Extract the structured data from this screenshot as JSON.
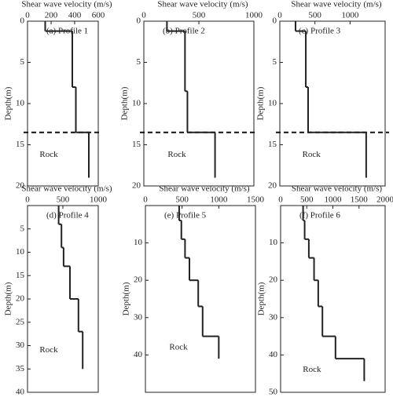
{
  "chart_data": [
    {
      "type": "step-profile",
      "title": "(a) Profile 1",
      "xlabel": "Shear wave velocity (m/s)",
      "ylabel": "Depth(m)",
      "xlim": [
        0,
        600
      ],
      "xticks": [
        0,
        200,
        400,
        600
      ],
      "ylim": [
        0,
        20
      ],
      "yticks": [
        0,
        5,
        10,
        15,
        20
      ],
      "velocity": [
        150,
        380,
        410,
        520
      ],
      "depth_breaks": [
        0,
        1.2,
        8,
        13.5,
        19
      ],
      "boundary_depth": 13.5,
      "rock_label": "Rock",
      "color": "#222222"
    },
    {
      "type": "step-profile",
      "title": "(b) Profile 2",
      "xlabel": "Shear wave velocity (m/s)",
      "ylabel": "Depth(m)",
      "xlim": [
        0,
        1000
      ],
      "xticks": [
        0,
        500,
        1000
      ],
      "ylim": [
        0,
        20
      ],
      "yticks": [
        0,
        5,
        10,
        15,
        20
      ],
      "velocity": [
        210,
        374,
        396,
        647
      ],
      "depth_breaks": [
        0,
        1.2,
        8.5,
        13.5,
        19
      ],
      "boundary_depth": 13.5,
      "rock_label": "Rock",
      "color": "#222222"
    },
    {
      "type": "step-profile",
      "title": "(c) Profile 3",
      "xlabel": "Shear wave velocity (m/s)",
      "ylabel": "Depth(m)",
      "xlim": [
        0,
        1500
      ],
      "xticks": [
        0,
        500,
        1000
      ],
      "ylim": [
        0,
        20
      ],
      "yticks": [
        0,
        5,
        10,
        15,
        20
      ],
      "velocity": [
        224,
        370,
        403,
        1230
      ],
      "depth_breaks": [
        0,
        1.2,
        8,
        13.5,
        19
      ],
      "boundary_depth": 13.5,
      "rock_label": "Rock",
      "color": "#222222"
    },
    {
      "type": "step-profile",
      "title": "(d) Profile 4",
      "xlabel": "Shear wave velocity (m/s)",
      "ylabel": "Depth(m)",
      "xlim": [
        0,
        1000
      ],
      "xticks": [
        0,
        500,
        1000
      ],
      "ylim": [
        0,
        40
      ],
      "yticks": [
        5,
        10,
        15,
        20,
        25,
        30,
        35,
        40
      ],
      "velocity": [
        440,
        480,
        510,
        600,
        720,
        780
      ],
      "depth_breaks": [
        0,
        4,
        9,
        13,
        20,
        27,
        35
      ],
      "rock_label": "Rock",
      "color": "#222222"
    },
    {
      "type": "step-profile",
      "title": "(e) Profile 5",
      "xlabel": "Shear wave velocity (m/s)",
      "ylabel": "Depth(m)",
      "xlim": [
        0,
        1500
      ],
      "xticks": [
        0,
        500,
        1000,
        1500
      ],
      "ylim": [
        0,
        50
      ],
      "yticks": [
        10,
        20,
        30,
        40
      ],
      "velocity": [
        460,
        490,
        540,
        600,
        720,
        780,
        1000
      ],
      "depth_breaks": [
        0,
        4,
        9,
        14,
        20,
        27,
        35,
        41
      ],
      "rock_label": "Rock",
      "color": "#222222"
    },
    {
      "type": "step-profile",
      "title": "(f) Profile 6",
      "xlabel": "Shear wave velocity (m/s)",
      "ylabel": "Depth(m)",
      "xlim": [
        0,
        2000
      ],
      "xticks": [
        0,
        500,
        1000,
        1500,
        2000
      ],
      "ylim": [
        0,
        50
      ],
      "yticks": [
        10,
        20,
        30,
        40,
        50
      ],
      "velocity": [
        430,
        460,
        540,
        640,
        720,
        800,
        1050,
        1600
      ],
      "depth_breaks": [
        0,
        4,
        9,
        14,
        20,
        27,
        35,
        41,
        47
      ],
      "rock_label": "Rock",
      "color": "#222222"
    }
  ]
}
